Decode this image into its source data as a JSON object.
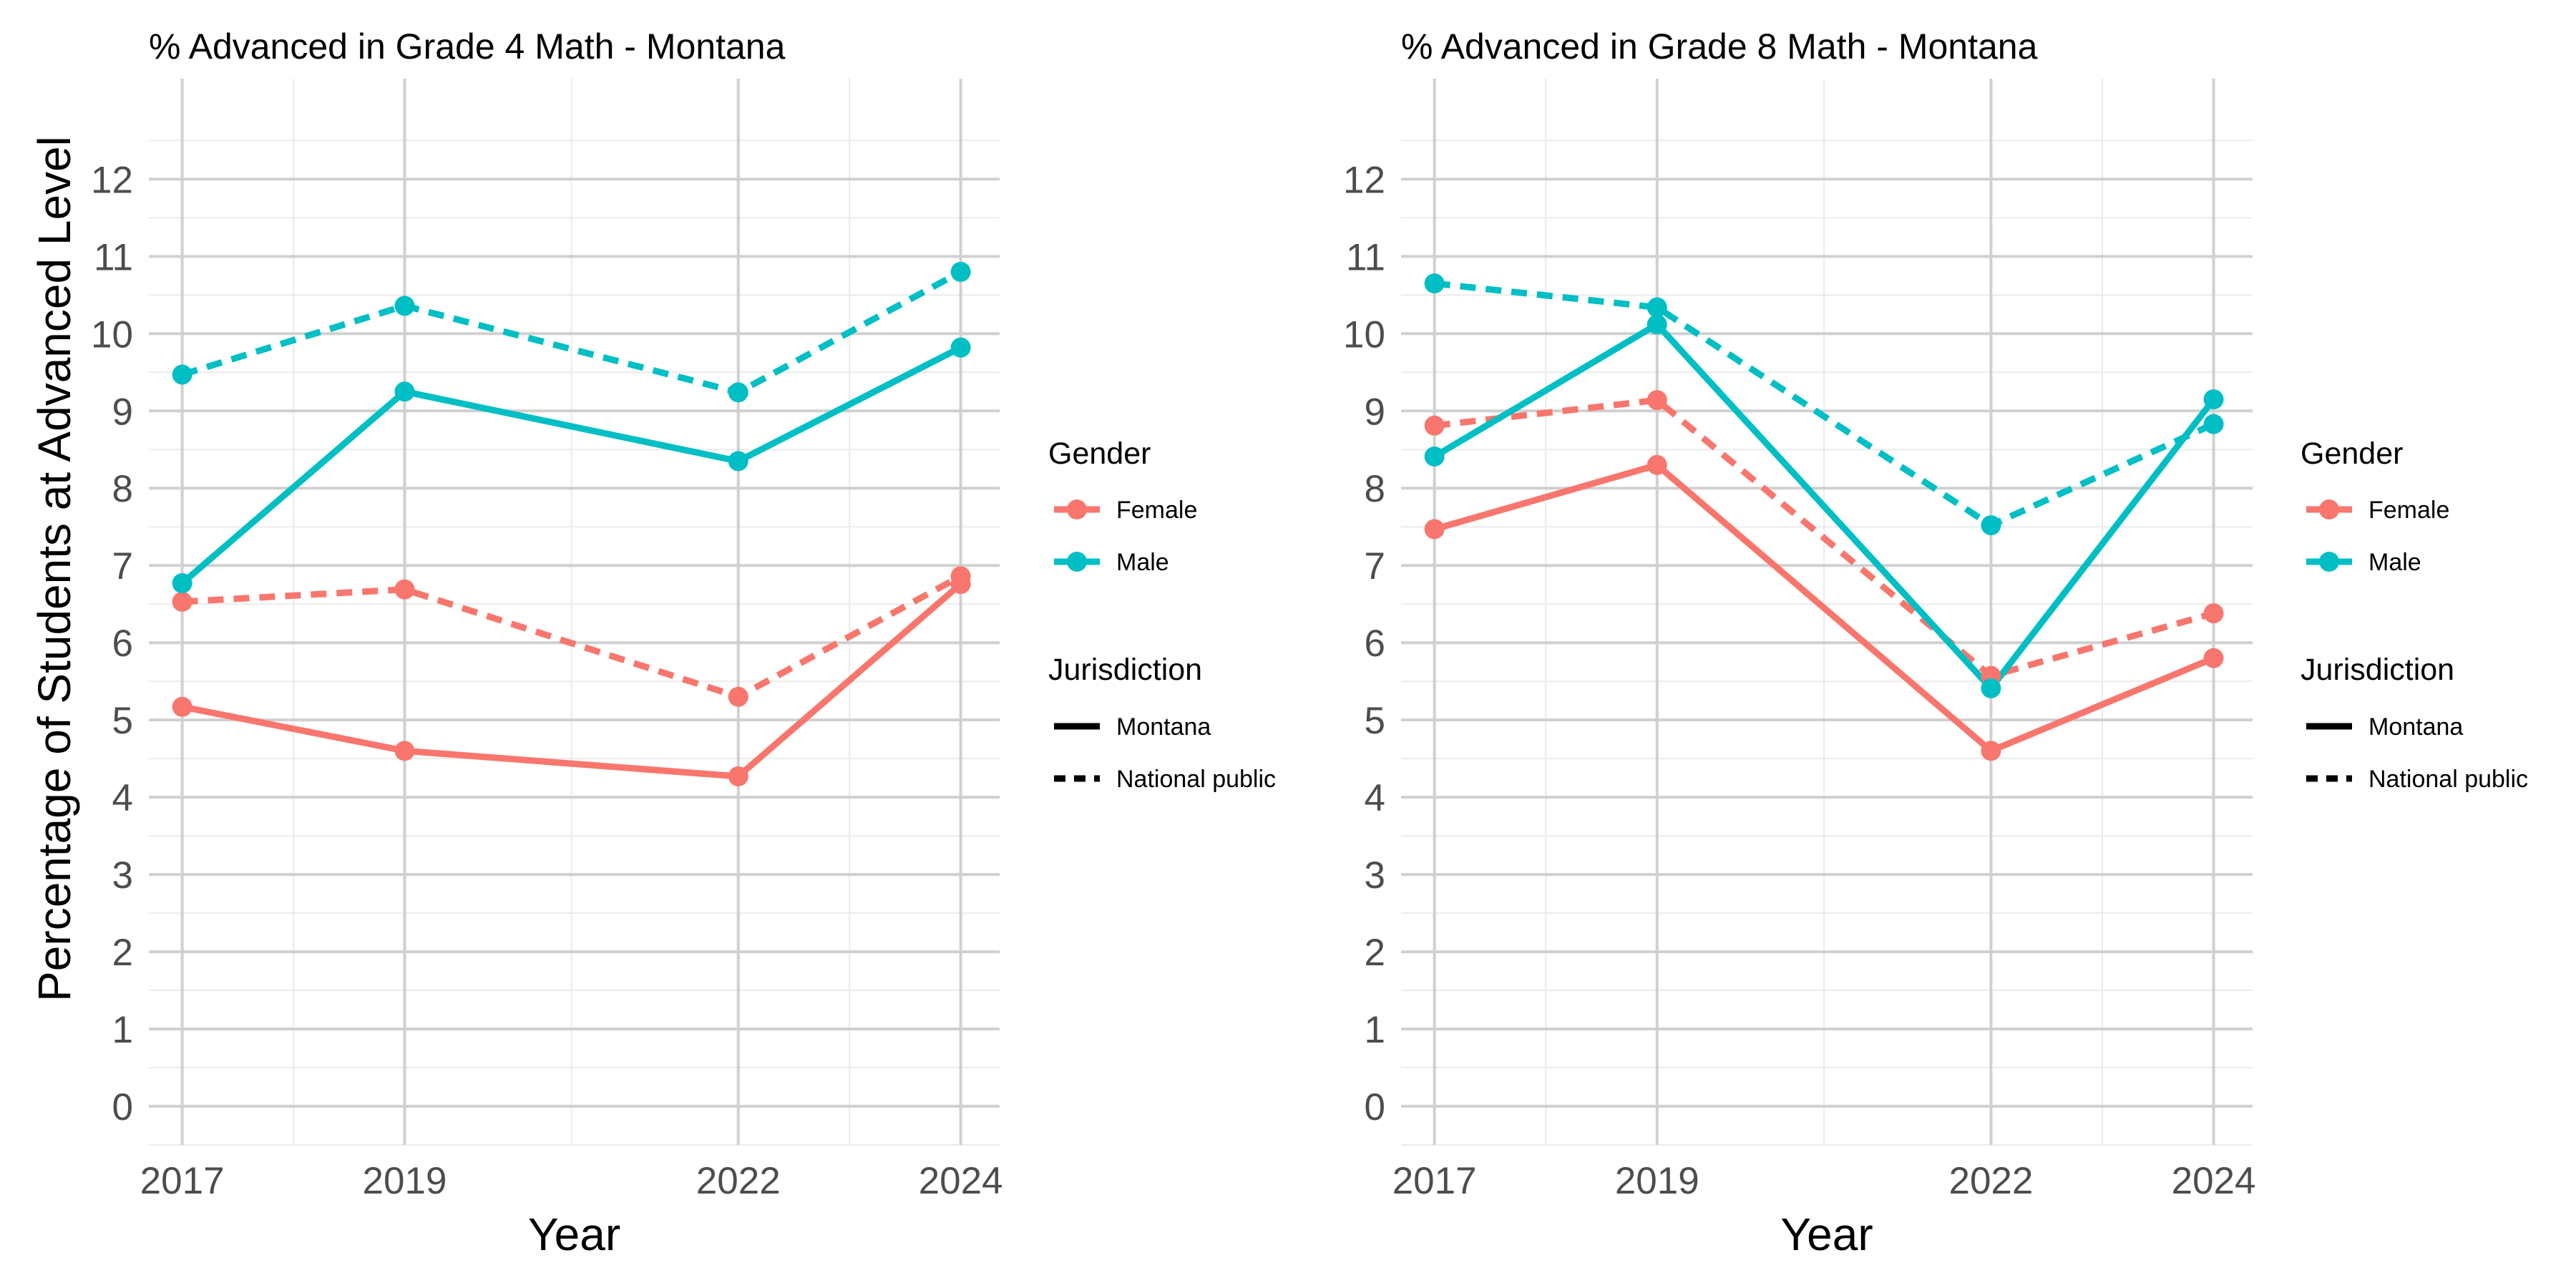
{
  "chart_data": [
    {
      "type": "line",
      "title": "% Advanced in Grade 4 Math - Montana",
      "xlabel": "Year",
      "ylabel": "Percentage of Students at Advanced Level",
      "x": [
        2017,
        2019,
        2022,
        2024
      ],
      "x_ticks": [
        "2017",
        "2019",
        "2022",
        "2024"
      ],
      "y_ticks": [
        "0",
        "1",
        "2",
        "3",
        "4",
        "5",
        "6",
        "7",
        "8",
        "9",
        "10",
        "11",
        "12"
      ],
      "xlim": [
        2016.7,
        2024.35
      ],
      "ylim": [
        -0.5,
        13.3
      ],
      "grid": true,
      "series": [
        {
          "gender": "Female",
          "jurisdiction": "Montana",
          "values": [
            5.17,
            4.6,
            4.27,
            6.76
          ],
          "color": "#F8766D",
          "dash": "solid"
        },
        {
          "gender": "Female",
          "jurisdiction": "National public",
          "values": [
            6.53,
            6.69,
            5.3,
            6.86
          ],
          "color": "#F8766D",
          "dash": "dashed"
        },
        {
          "gender": "Male",
          "jurisdiction": "Montana",
          "values": [
            6.77,
            9.25,
            8.35,
            9.82
          ],
          "color": "#00BFC4",
          "dash": "solid"
        },
        {
          "gender": "Male",
          "jurisdiction": "National public",
          "values": [
            9.47,
            10.36,
            9.24,
            10.8
          ],
          "color": "#00BFC4",
          "dash": "dashed"
        }
      ]
    },
    {
      "type": "line",
      "title": "% Advanced in Grade 8 Math - Montana",
      "xlabel": "Year",
      "ylabel": "",
      "x": [
        2017,
        2019,
        2022,
        2024
      ],
      "x_ticks": [
        "2017",
        "2019",
        "2022",
        "2024"
      ],
      "y_ticks": [
        "0",
        "1",
        "2",
        "3",
        "4",
        "5",
        "6",
        "7",
        "8",
        "9",
        "10",
        "11",
        "12"
      ],
      "xlim": [
        2016.7,
        2024.35
      ],
      "ylim": [
        -0.5,
        13.3
      ],
      "grid": true,
      "series": [
        {
          "gender": "Female",
          "jurisdiction": "Montana",
          "values": [
            7.47,
            8.3,
            4.6,
            5.8
          ],
          "color": "#F8766D",
          "dash": "solid"
        },
        {
          "gender": "Female",
          "jurisdiction": "National public",
          "values": [
            8.81,
            9.14,
            5.57,
            6.38
          ],
          "color": "#F8766D",
          "dash": "dashed"
        },
        {
          "gender": "Male",
          "jurisdiction": "Montana",
          "values": [
            8.41,
            10.12,
            5.41,
            9.15
          ],
          "color": "#00BFC4",
          "dash": "solid"
        },
        {
          "gender": "Male",
          "jurisdiction": "National public",
          "values": [
            10.65,
            10.34,
            7.52,
            8.83
          ],
          "color": "#00BFC4",
          "dash": "dashed"
        }
      ]
    }
  ],
  "legend": {
    "placement": "right",
    "gender_title": "Gender",
    "gender_items": [
      {
        "label": "Female",
        "color": "#F8766D"
      },
      {
        "label": "Male",
        "color": "#00BFC4"
      }
    ],
    "jurisdiction_title": "Jurisdiction",
    "jurisdiction_items": [
      {
        "label": "Montana",
        "dash": "solid"
      },
      {
        "label": "National public",
        "dash": "dashed"
      }
    ]
  }
}
